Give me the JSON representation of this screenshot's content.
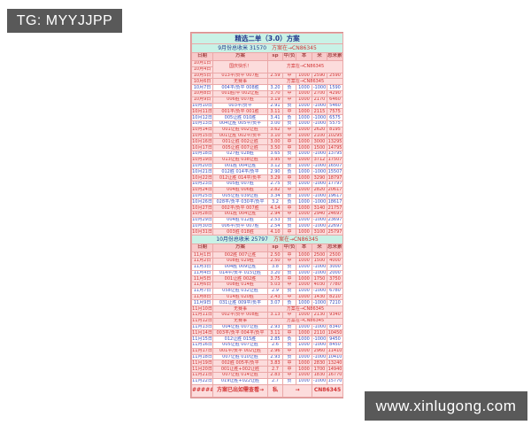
{
  "badges": {
    "top_left": "TG: MYYJJPP",
    "bottom_right": "www.xinlugong.com"
  },
  "colors": {
    "badge_bg": "#595959",
    "title_bg": "#c9f2e6",
    "title_text": "#22388c",
    "header_bg": "#f8caca",
    "header_text": "#a54848",
    "win_bg": "#fcdcdc",
    "win_text": "#d23434",
    "loss_bg": "#ffffff",
    "loss_text": "#3a50c0",
    "grid_line": "#eaa8a8"
  },
  "table": {
    "title": "精选二单（3.0）方案",
    "september_summary": {
      "label": "9月份总收米",
      "value": "31570",
      "note": "方案在→CN86345"
    },
    "columns": [
      "日期",
      "方案",
      "sp",
      "中/负",
      "本",
      "米",
      "总米累计"
    ],
    "october_rows": [
      {
        "kind": "holiday",
        "dates": [
          "10月1日",
          "10月4日"
        ],
        "label": "国庆快乐！",
        "note": "方案在→CN86345"
      },
      {
        "kind": "win",
        "date": "10月5日",
        "plan": "013平/负平 007胜",
        "sp": "2.59",
        "result": "中",
        "stake": "1000",
        "win": "2590",
        "total": "2590"
      },
      {
        "kind": "nomatch",
        "date": "10月6日",
        "label": "无赛事",
        "note": "方案在→CN86345"
      },
      {
        "kind": "loss",
        "date": "10月7日",
        "plan": "004平/负平 008胜",
        "sp": "3.20",
        "result": "负",
        "stake": "1000",
        "win": "-1000",
        "total": "1590"
      },
      {
        "kind": "win",
        "date": "10月8日",
        "plan": "001胜/平 002让胜",
        "sp": "3.70",
        "result": "中",
        "stake": "1000",
        "win": "2700",
        "total": "4290"
      },
      {
        "kind": "win",
        "date": "10月9日",
        "plan": "006胜 007胜",
        "sp": "3.19",
        "result": "中",
        "stake": "1000",
        "win": "2170",
        "total": "6460"
      },
      {
        "kind": "loss",
        "date": "10月10日",
        "plan": "003平/负平",
        "sp": "2.91",
        "result": "负",
        "stake": "1000",
        "win": "-1000",
        "total": "5460"
      },
      {
        "kind": "win",
        "date": "10月11日",
        "plan": "001平/负平 001胜",
        "sp": "3.11",
        "result": "中",
        "stake": "1000",
        "win": "2115",
        "total": "7575"
      },
      {
        "kind": "loss",
        "date": "10月12日",
        "plan": "005让胜 010胜",
        "sp": "3.41",
        "result": "负",
        "stake": "1000",
        "win": "-1000",
        "total": "6575"
      },
      {
        "kind": "loss",
        "date": "10月13日",
        "plan": "004让胜 005平/负平",
        "sp": "3.00",
        "result": "负",
        "stake": "1000",
        "win": "-1000",
        "total": "5575"
      },
      {
        "kind": "win",
        "date": "10月14日",
        "plan": "001让胜 002让胜",
        "sp": "3.62",
        "result": "中",
        "stake": "1000",
        "win": "2620",
        "total": "8195"
      },
      {
        "kind": "win",
        "date": "10月15日",
        "plan": "001让胜 002平/负平",
        "sp": "3.10",
        "result": "中",
        "stake": "1000",
        "win": "2100",
        "total": "10295"
      },
      {
        "kind": "win",
        "date": "10月16日",
        "plan": "001让胜 002让胜",
        "sp": "3.00",
        "result": "中",
        "stake": "1000",
        "win": "3000",
        "total": "13295"
      },
      {
        "kind": "win",
        "date": "10月17日",
        "plan": "005让胜 007让胜",
        "sp": "3.50",
        "result": "中",
        "stake": "1000",
        "win": "1500",
        "total": "14795"
      },
      {
        "kind": "loss",
        "date": "10月18日",
        "plan": "027胜 028胜",
        "sp": "3.65",
        "result": "负",
        "stake": "1000",
        "win": "-1000",
        "total": "13795"
      },
      {
        "kind": "win",
        "date": "10月19日",
        "plan": "013让胜 038让胜",
        "sp": "3.95",
        "result": "中",
        "stake": "1000",
        "win": "3712",
        "total": "17507"
      },
      {
        "kind": "loss",
        "date": "10月20日",
        "plan": "001胜 004让胜",
        "sp": "3.12",
        "result": "负",
        "stake": "1000",
        "win": "-1000",
        "total": "16507"
      },
      {
        "kind": "loss",
        "date": "10月21日",
        "plan": "012胜 014平/负平",
        "sp": "2.90",
        "result": "负",
        "stake": "1000",
        "win": "-1000",
        "total": "15507"
      },
      {
        "kind": "win",
        "date": "10月22日",
        "plan": "012让胜 014平/负平",
        "sp": "3.29",
        "result": "中",
        "stake": "1000",
        "win": "3290",
        "total": "18797"
      },
      {
        "kind": "loss",
        "date": "10月23日",
        "plan": "005胜 007胜",
        "sp": "2.75",
        "result": "负",
        "stake": "1000",
        "win": "-1000",
        "total": "17797"
      },
      {
        "kind": "win",
        "date": "10月24日",
        "plan": "004胜 006胜",
        "sp": "2.82",
        "result": "中",
        "stake": "1000",
        "win": "2820",
        "total": "20617"
      },
      {
        "kind": "loss",
        "date": "10月25日",
        "plan": "005让胜 039让胜",
        "sp": "3.34",
        "result": "负",
        "stake": "1000",
        "win": "-1000",
        "total": "19617"
      },
      {
        "kind": "loss",
        "date": "10月26日",
        "plan": "028平/负平 030平/负平",
        "sp": "3.2",
        "result": "负",
        "stake": "1000",
        "win": "-1000",
        "total": "18617"
      },
      {
        "kind": "win",
        "date": "10月27日",
        "plan": "002平/负平 007胜",
        "sp": "4.14",
        "result": "中",
        "stake": "1000",
        "win": "3140",
        "total": "21757"
      },
      {
        "kind": "win",
        "date": "10月28日",
        "plan": "001胜 004让胜",
        "sp": "2.94",
        "result": "中",
        "stake": "1000",
        "win": "2940",
        "total": "24697"
      },
      {
        "kind": "loss",
        "date": "10月29日",
        "plan": "004胜 012胜",
        "sp": "2.53",
        "result": "负",
        "stake": "1000",
        "win": "-1000",
        "total": "23697"
      },
      {
        "kind": "loss",
        "date": "10月30日",
        "plan": "006平/负平 007胜",
        "sp": "2.54",
        "result": "负",
        "stake": "1000",
        "win": "-1000",
        "total": "22697"
      },
      {
        "kind": "win",
        "date": "10月31日",
        "plan": "003胜 018胜",
        "sp": "4.10",
        "result": "中",
        "stake": "1000",
        "win": "3100",
        "total": "25797"
      }
    ],
    "october_summary": {
      "label": "10月份总收米",
      "value": "25797",
      "note": "方案在→CN86345"
    },
    "november_rows": [
      {
        "kind": "win",
        "date": "11月1日",
        "plan": "002胜 007让胜",
        "sp": "2.50",
        "result": "中",
        "stake": "1000",
        "win": "2500",
        "total": "2500"
      },
      {
        "kind": "win",
        "date": "11月2日",
        "plan": "008胜 029胜",
        "sp": "2.50",
        "result": "中",
        "stake": "1000",
        "win": "1500",
        "total": "4000"
      },
      {
        "kind": "loss",
        "date": "11月3日",
        "plan": "004胜 009让胜",
        "sp": "3.8",
        "result": "负",
        "stake": "1000",
        "win": "-1000",
        "total": "3000"
      },
      {
        "kind": "loss",
        "date": "11月4日",
        "plan": "014平/负平 015让胜",
        "sp": "3.20",
        "result": "负",
        "stake": "1000",
        "win": "-1000",
        "total": "2000"
      },
      {
        "kind": "win",
        "date": "11月5日",
        "plan": "001让胜 002胜",
        "sp": "3.75",
        "result": "中",
        "stake": "1000",
        "win": "1750",
        "total": "3750"
      },
      {
        "kind": "win",
        "date": "11月6日",
        "plan": "008胜 014胜",
        "sp": "5.03",
        "result": "中",
        "stake": "1000",
        "win": "4030",
        "total": "7780"
      },
      {
        "kind": "loss",
        "date": "11月7日",
        "plan": "058让胜 032让胜",
        "sp": "2.9",
        "result": "负",
        "stake": "1000",
        "win": "-1000",
        "total": "6780"
      },
      {
        "kind": "win",
        "date": "11月8日",
        "plan": "014胜 020胜",
        "sp": "2.43",
        "result": "中",
        "stake": "1000",
        "win": "1430",
        "total": "8210"
      },
      {
        "kind": "loss",
        "date": "11月9日",
        "plan": "031让胜 009平/负平",
        "sp": "3.07",
        "result": "负",
        "stake": "1000",
        "win": "-1000",
        "total": "7210"
      },
      {
        "kind": "nomatch",
        "date": "11月10日",
        "label": "无赛事",
        "note": "方案在→CN86345"
      },
      {
        "kind": "win",
        "date": "11月11日",
        "plan": "002平/负平 008胜",
        "sp": "3.13",
        "result": "中",
        "stake": "1000",
        "win": "2130",
        "total": "9340"
      },
      {
        "kind": "nomatch",
        "date": "11月12日",
        "label": "无赛事",
        "note": "方案在→CN86345"
      },
      {
        "kind": "loss",
        "date": "11月13日",
        "plan": "004让胜 007让胜",
        "sp": "2.93",
        "result": "负",
        "stake": "1000",
        "win": "-1000",
        "total": "8340"
      },
      {
        "kind": "win",
        "date": "11月14日",
        "plan": "003平/负平 004平/负平",
        "sp": "3.11",
        "result": "中",
        "stake": "1000",
        "win": "2110",
        "total": "10450"
      },
      {
        "kind": "loss",
        "date": "11月15日",
        "plan": "012让胜 015胜",
        "sp": "2.85",
        "result": "负",
        "stake": "1000",
        "win": "-1000",
        "total": "9450"
      },
      {
        "kind": "loss",
        "date": "11月16日",
        "plan": "005让胜 007让胜",
        "sp": "2.6",
        "result": "负",
        "stake": "1000",
        "win": "-1000",
        "total": "8450"
      },
      {
        "kind": "win",
        "date": "11月17日",
        "plan": "001平/负平 002让胜",
        "sp": "2.96",
        "result": "中",
        "stake": "1000",
        "win": "2960",
        "total": "11410"
      },
      {
        "kind": "loss",
        "date": "11月18日",
        "plan": "007让胜 010让胜",
        "sp": "2.93",
        "result": "负",
        "stake": "1000",
        "win": "-1000",
        "total": "10410"
      },
      {
        "kind": "win",
        "date": "11月19日",
        "plan": "002胜 005平/负平",
        "sp": "3.83",
        "result": "中",
        "stake": "1000",
        "win": "2830",
        "total": "13240"
      },
      {
        "kind": "win",
        "date": "11月20日",
        "plan": "001让胜+002让胜",
        "sp": "2.7",
        "result": "中",
        "stake": "1000",
        "win": "1700",
        "total": "14940"
      },
      {
        "kind": "win",
        "date": "11月21日",
        "plan": "007让胜 014让胜",
        "sp": "2.83",
        "result": "中",
        "stake": "1000",
        "win": "1830",
        "total": "16770"
      },
      {
        "kind": "loss",
        "date": "11月22日",
        "plan": "019让胜+022让胜",
        "sp": "2.7",
        "result": "负",
        "stake": "1000",
        "win": "-1000",
        "total": "15770"
      }
    ],
    "footer": {
      "hash": "########",
      "label": "方案已出如需查看→",
      "channel": "私",
      "arrow": "→",
      "code": "CN86345"
    }
  }
}
